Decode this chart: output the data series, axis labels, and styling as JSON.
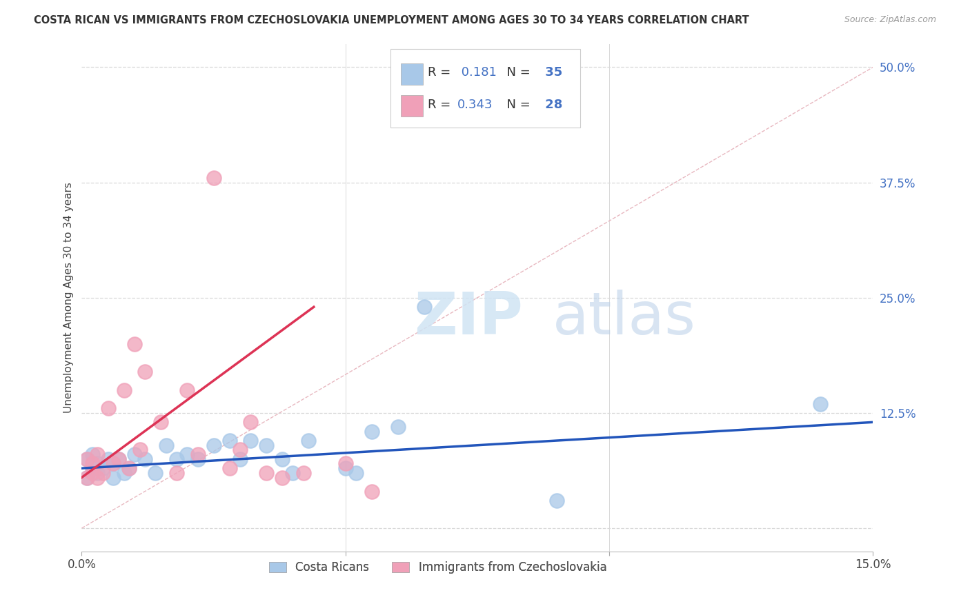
{
  "title": "COSTA RICAN VS IMMIGRANTS FROM CZECHOSLOVAKIA UNEMPLOYMENT AMONG AGES 30 TO 34 YEARS CORRELATION CHART",
  "source": "Source: ZipAtlas.com",
  "ylabel": "Unemployment Among Ages 30 to 34 years",
  "xlim": [
    0.0,
    0.15
  ],
  "ylim": [
    -0.025,
    0.525
  ],
  "yticks": [
    0.0,
    0.125,
    0.25,
    0.375,
    0.5
  ],
  "yticklabels": [
    "",
    "12.5%",
    "25.0%",
    "37.5%",
    "50.0%"
  ],
  "xticks": [
    0.0,
    0.05,
    0.1,
    0.15
  ],
  "xticklabels": [
    "0.0%",
    "",
    "",
    "15.0%"
  ],
  "legend1_r": "0.181",
  "legend1_n": "35",
  "legend2_r": "0.343",
  "legend2_n": "28",
  "blue_scatter_color": "#a8c8e8",
  "pink_scatter_color": "#f0a0b8",
  "blue_line_color": "#2255bb",
  "pink_line_color": "#dd3355",
  "diagonal_color": "#d0d0d0",
  "grid_color": "#d8d8d8",
  "watermark_zip": "ZIP",
  "watermark_atlas": "atlas",
  "bg_color": "#ffffff",
  "blue_scatter_x": [
    0.001,
    0.001,
    0.002,
    0.002,
    0.003,
    0.003,
    0.004,
    0.005,
    0.006,
    0.006,
    0.007,
    0.008,
    0.009,
    0.01,
    0.012,
    0.014,
    0.016,
    0.018,
    0.02,
    0.022,
    0.025,
    0.028,
    0.03,
    0.032,
    0.035,
    0.038,
    0.04,
    0.043,
    0.05,
    0.052,
    0.055,
    0.06,
    0.065,
    0.09,
    0.14
  ],
  "blue_scatter_y": [
    0.055,
    0.075,
    0.065,
    0.08,
    0.06,
    0.07,
    0.065,
    0.075,
    0.07,
    0.055,
    0.075,
    0.06,
    0.065,
    0.08,
    0.075,
    0.06,
    0.09,
    0.075,
    0.08,
    0.075,
    0.09,
    0.095,
    0.075,
    0.095,
    0.09,
    0.075,
    0.06,
    0.095,
    0.065,
    0.06,
    0.105,
    0.11,
    0.24,
    0.03,
    0.135
  ],
  "pink_scatter_x": [
    0.001,
    0.001,
    0.002,
    0.002,
    0.003,
    0.003,
    0.004,
    0.005,
    0.006,
    0.007,
    0.008,
    0.009,
    0.01,
    0.011,
    0.012,
    0.015,
    0.018,
    0.02,
    0.022,
    0.025,
    0.028,
    0.03,
    0.032,
    0.035,
    0.038,
    0.042,
    0.05,
    0.055
  ],
  "pink_scatter_y": [
    0.055,
    0.075,
    0.06,
    0.07,
    0.055,
    0.08,
    0.06,
    0.13,
    0.07,
    0.075,
    0.15,
    0.065,
    0.2,
    0.085,
    0.17,
    0.115,
    0.06,
    0.15,
    0.08,
    0.38,
    0.065,
    0.085,
    0.115,
    0.06,
    0.055,
    0.06,
    0.07,
    0.04
  ],
  "blue_line_x": [
    0.0,
    0.15
  ],
  "blue_line_y": [
    0.065,
    0.115
  ],
  "pink_line_x": [
    0.0,
    0.044
  ],
  "pink_line_y": [
    0.055,
    0.24
  ]
}
